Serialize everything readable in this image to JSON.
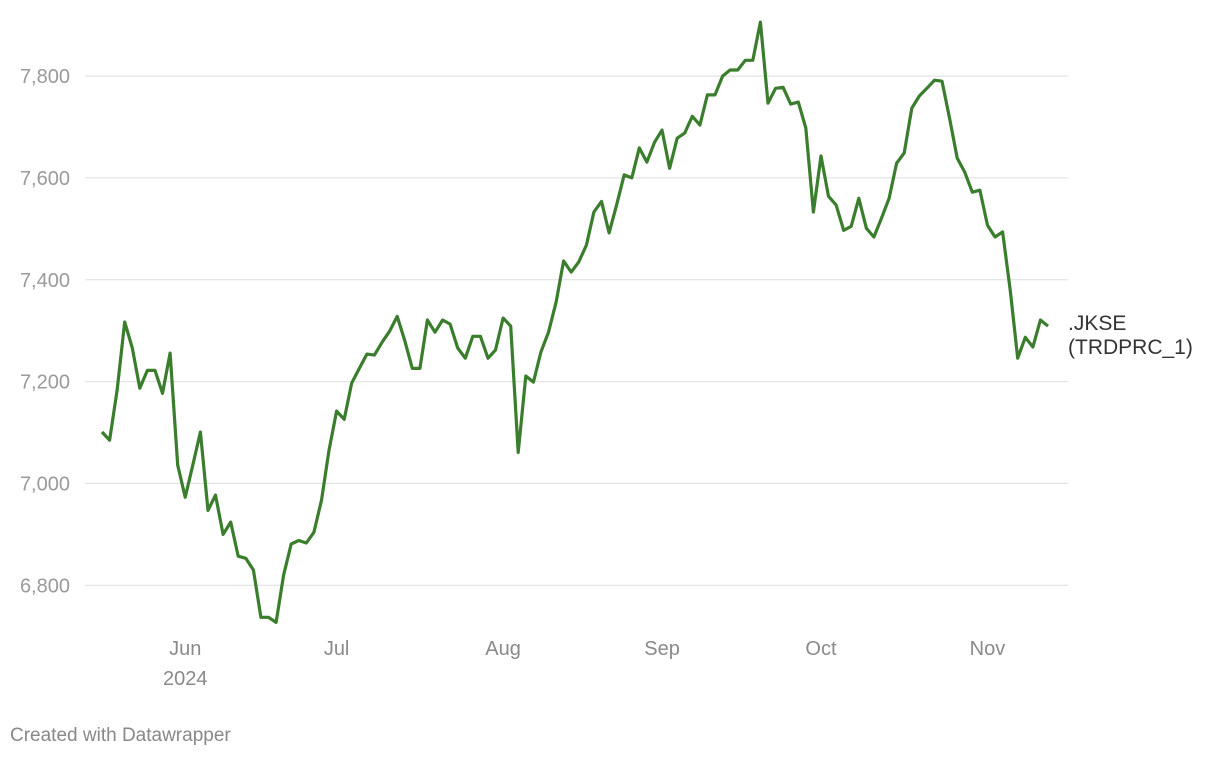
{
  "chart_data": {
    "type": "line",
    "categories": [
      null,
      null,
      null,
      null,
      null,
      null,
      null,
      null,
      null,
      null,
      null,
      "Jun",
      null,
      null,
      null,
      null,
      null,
      null,
      null,
      null,
      null,
      null,
      null,
      null,
      null,
      null,
      null,
      null,
      null,
      null,
      null,
      "Jul",
      null,
      null,
      null,
      null,
      null,
      null,
      null,
      null,
      null,
      null,
      null,
      null,
      null,
      null,
      null,
      null,
      null,
      null,
      null,
      null,
      null,
      "Aug",
      null,
      null,
      null,
      null,
      null,
      null,
      null,
      null,
      null,
      null,
      null,
      null,
      null,
      null,
      null,
      null,
      null,
      null,
      null,
      null,
      "Sep",
      null,
      null,
      null,
      null,
      null,
      null,
      null,
      null,
      null,
      null,
      null,
      null,
      null,
      null,
      null,
      null,
      null,
      null,
      null,
      null,
      "Oct",
      null,
      null,
      null,
      null,
      null,
      null,
      null,
      null,
      null,
      null,
      null,
      null,
      null,
      null,
      null,
      null,
      null,
      null,
      null,
      null,
      null,
      "Nov",
      null,
      null,
      null,
      null,
      null,
      null,
      null,
      null
    ],
    "x_sublabel": "2024",
    "series": [
      {
        "name": ".JKSE (TRDPRC_1)",
        "color": "#3a7d2c",
        "values": [
          7101,
          7085,
          7183,
          7317,
          7266,
          7187,
          7222,
          7222,
          7177,
          7256,
          7036,
          6973,
          7036,
          7101,
          6947,
          6977,
          6900,
          6924,
          6857,
          6853,
          6830,
          6737,
          6737,
          6727,
          6820,
          6881,
          6888,
          6883,
          6904,
          6967,
          7065,
          7142,
          7126,
          7197,
          7226,
          7254,
          7252,
          7277,
          7299,
          7328,
          7281,
          7226,
          7226,
          7321,
          7297,
          7321,
          7313,
          7266,
          7246,
          7289,
          7289,
          7246,
          7262,
          7325,
          7309,
          7061,
          7211,
          7199,
          7258,
          7297,
          7356,
          7437,
          7415,
          7435,
          7468,
          7533,
          7554,
          7492,
          7547,
          7606,
          7600,
          7659,
          7631,
          7670,
          7694,
          7619,
          7678,
          7688,
          7721,
          7704,
          7763,
          7763,
          7800,
          7812,
          7812,
          7831,
          7831,
          7906,
          7747,
          7776,
          7778,
          7745,
          7749,
          7698,
          7533,
          7643,
          7564,
          7547,
          7497,
          7505,
          7560,
          7501,
          7484,
          7521,
          7560,
          7629,
          7649,
          7737,
          7761,
          7776,
          7792,
          7790,
          7717,
          7639,
          7611,
          7572,
          7576,
          7507,
          7484,
          7494,
          7380,
          7246,
          7287,
          7268,
          7321,
          7309
        ]
      }
    ],
    "ylim": [
      6720,
      7920
    ],
    "yticks": [
      {
        "value": 6800,
        "label": "6,800"
      },
      {
        "value": 7000,
        "label": "7,000"
      },
      {
        "value": 7200,
        "label": "7,200"
      },
      {
        "value": 7400,
        "label": "7,400"
      },
      {
        "value": 7600,
        "label": "7,600"
      },
      {
        "value": 7800,
        "label": "7,800"
      }
    ],
    "grid": true,
    "footer": "Created with Datawrapper"
  }
}
